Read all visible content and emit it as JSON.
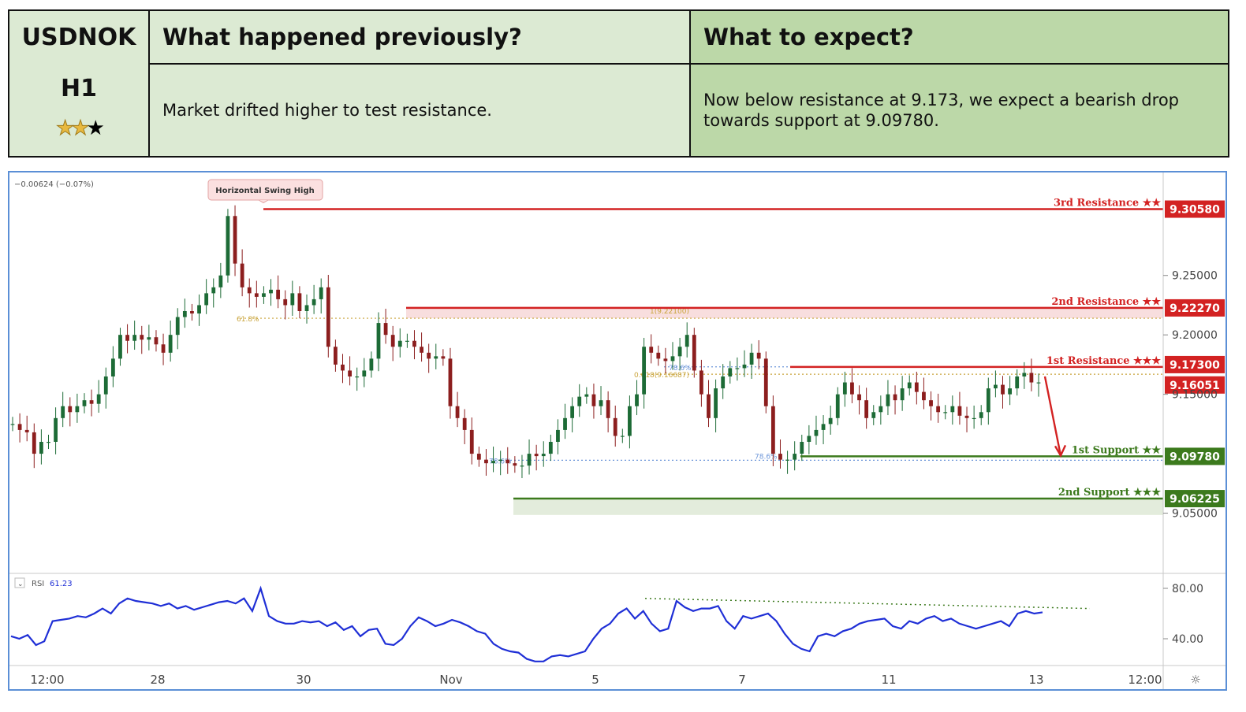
{
  "header": {
    "symbol": "USDNOK",
    "timeframe": "H1",
    "rating": {
      "filled": 2,
      "total": 3
    },
    "col_prev_title": "What happened previously?",
    "col_exp_title": "What to expect?",
    "prev_text": "Market drifted higher to test resistance.",
    "exp_text": "Now below resistance at 9.173, we expect a bearish drop towards support at 9.09780."
  },
  "chart_data": {
    "type": "candlestick",
    "change_label": "−0.00624 (−0.07%)",
    "annotation": "Horizontal Swing High",
    "y_ticks": [
      "9.25000",
      "9.20000",
      "9.15000",
      "9.05000"
    ],
    "x_ticks": [
      "12:00",
      "28",
      "30",
      "Nov",
      "5",
      "7",
      "11",
      "13",
      "12:00"
    ],
    "ylim": [
      9.0,
      9.33
    ],
    "levels": [
      {
        "label": "3rd Resistance ★★",
        "value": "9.30580",
        "price": 9.3058,
        "kind": "resistance"
      },
      {
        "label": "2nd Resistance ★★",
        "value": "9.22270",
        "price": 9.2227,
        "kind": "resistance"
      },
      {
        "label": "1st Resistance ★★★",
        "value": "9.17300",
        "price": 9.173,
        "kind": "resistance"
      },
      {
        "label": "1st Support ★★",
        "value": "9.09780",
        "price": 9.0978,
        "kind": "support"
      },
      {
        "label": "2nd Support ★★★",
        "value": "9.06225",
        "price": 9.06225,
        "kind": "support"
      }
    ],
    "last_price": "9.16051",
    "fib_labels": [
      "61.8%",
      "1(9.22100)",
      "78.6%",
      "0.618(9.16687)",
      "78.6%",
      "78.6%"
    ],
    "close_series": [
      9.125,
      9.12,
      9.118,
      9.1,
      9.11,
      9.11,
      9.13,
      9.14,
      9.135,
      9.14,
      9.145,
      9.142,
      9.15,
      9.165,
      9.18,
      9.2,
      9.195,
      9.2,
      9.196,
      9.198,
      9.192,
      9.185,
      9.2,
      9.215,
      9.22,
      9.218,
      9.225,
      9.235,
      9.24,
      9.25,
      9.3,
      9.26,
      9.24,
      9.235,
      9.232,
      9.235,
      9.238,
      9.23,
      9.225,
      9.235,
      9.22,
      9.225,
      9.23,
      9.24,
      9.19,
      9.175,
      9.17,
      9.165,
      9.165,
      9.17,
      9.18,
      9.21,
      9.2,
      9.19,
      9.195,
      9.195,
      9.19,
      9.185,
      9.18,
      9.182,
      9.18,
      9.14,
      9.13,
      9.12,
      9.1,
      9.095,
      9.092,
      9.094,
      9.095,
      9.092,
      9.09,
      9.09,
      9.1,
      9.098,
      9.1,
      9.11,
      9.12,
      9.13,
      9.14,
      9.148,
      9.15,
      9.14,
      9.145,
      9.13,
      9.115,
      9.115,
      9.14,
      9.15,
      9.19,
      9.185,
      9.18,
      9.178,
      9.182,
      9.19,
      9.2,
      9.17,
      9.15,
      9.13,
      9.155,
      9.165,
      9.172,
      9.172,
      9.175,
      9.185,
      9.18,
      9.14,
      9.1,
      9.095,
      9.095,
      9.1,
      9.11,
      9.115,
      9.12,
      9.125,
      9.13,
      9.15,
      9.16,
      9.15,
      9.145,
      9.13,
      9.135,
      9.14,
      9.15,
      9.145,
      9.155,
      9.16,
      9.152,
      9.145,
      9.14,
      9.135,
      9.135,
      9.14,
      9.132,
      9.13,
      9.13,
      9.135,
      9.155,
      9.158,
      9.15,
      9.155,
      9.165,
      9.168,
      9.16,
      9.16
    ],
    "rsi": {
      "label": "RSI",
      "value": "61.23",
      "y_ticks": [
        "80.00",
        "40.00"
      ],
      "ylim": [
        20,
        90
      ],
      "values": [
        42,
        40,
        43,
        35,
        38,
        54,
        55,
        56,
        58,
        57,
        60,
        64,
        60,
        68,
        72,
        70,
        69,
        68,
        66,
        68,
        64,
        66,
        63,
        65,
        67,
        69,
        70,
        68,
        72,
        62,
        80,
        58,
        54,
        52,
        52,
        54,
        53,
        54,
        50,
        53,
        47,
        50,
        42,
        47,
        48,
        36,
        35,
        40,
        50,
        57,
        54,
        50,
        52,
        55,
        53,
        50,
        46,
        44,
        36,
        32,
        30,
        29,
        24,
        22,
        22,
        26,
        27,
        26,
        28,
        30,
        40,
        48,
        52,
        60,
        64,
        56,
        62,
        52,
        46,
        48,
        70,
        65,
        62,
        64,
        64,
        66,
        54,
        48,
        58,
        56,
        58,
        60,
        54,
        44,
        36,
        32,
        30,
        42,
        44,
        42,
        46,
        48,
        52,
        54,
        55,
        56,
        50,
        48,
        54,
        52,
        56,
        58,
        54,
        56,
        52,
        50,
        48,
        50,
        52,
        54,
        50,
        60,
        62,
        60,
        61
      ]
    }
  }
}
